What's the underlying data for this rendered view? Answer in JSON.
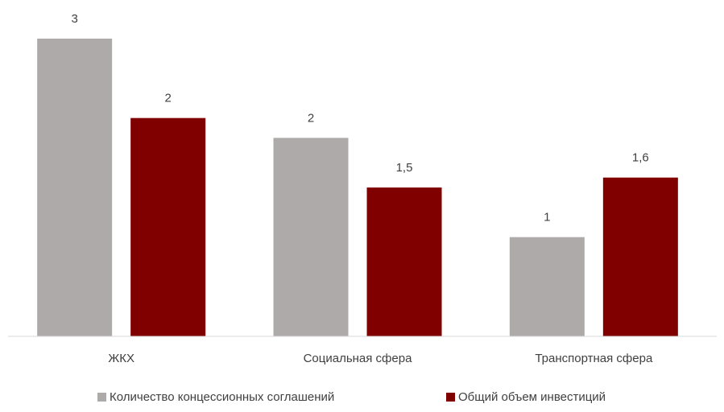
{
  "chart_data": {
    "type": "bar",
    "categories": [
      "ЖКХ",
      "Социальная сфера",
      "Транспортная сфера"
    ],
    "series": [
      {
        "name": "Количество концессионных соглашений",
        "color": "#aeaaaa",
        "values": [
          3,
          2,
          1
        ]
      },
      {
        "name": "Общий объем инвестиций",
        "color": "#800000",
        "values": [
          2.2,
          1.5,
          1.6
        ],
        "value_labels": [
          "2",
          "1,5",
          "1,6"
        ]
      }
    ]
  }
}
